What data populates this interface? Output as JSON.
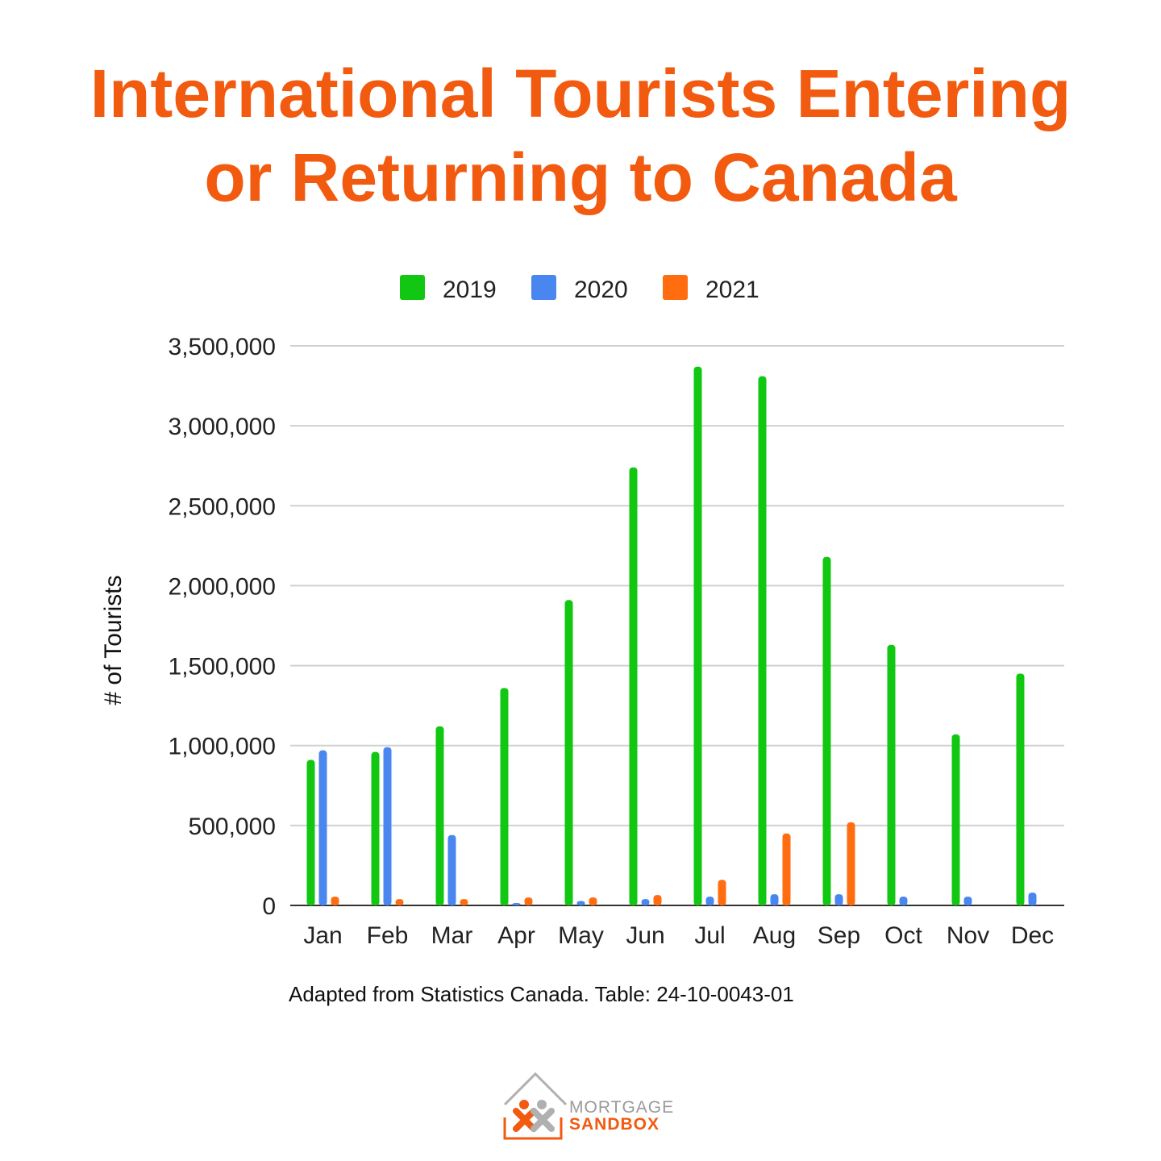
{
  "title": {
    "line1": "International Tourists Entering",
    "line2": "or Returning to Canada"
  },
  "source_note": "Adapted from Statistics Canada. Table: 24-10-0043-01",
  "logo": {
    "line1": "MORTGAGE",
    "line2": "SANDBOX"
  },
  "colors": {
    "title": "#f25a0f",
    "2019": "#11c711",
    "2020": "#4a86f0",
    "2021": "#ff6d10",
    "grid": "#d0d0d0"
  },
  "chart_data": {
    "type": "bar",
    "title": "International Tourists Entering or Returning to Canada",
    "xlabel": "",
    "ylabel": "# of Tourists",
    "ylim": [
      0,
      3500000
    ],
    "yticks": [
      0,
      500000,
      1000000,
      1500000,
      2000000,
      2500000,
      3000000,
      3500000
    ],
    "ytick_labels": [
      "0",
      "500,000",
      "1,000,000",
      "1,500,000",
      "2,000,000",
      "2,500,000",
      "3,000,000",
      "3,500,000"
    ],
    "grid": true,
    "legend_position": "top",
    "categories": [
      "Jan",
      "Feb",
      "Mar",
      "Apr",
      "May",
      "Jun",
      "Jul",
      "Aug",
      "Sep",
      "Oct",
      "Nov",
      "Dec"
    ],
    "series": [
      {
        "name": "2019",
        "color": "#11c711",
        "values": [
          910000,
          960000,
          1120000,
          1360000,
          1910000,
          2740000,
          3370000,
          3310000,
          2180000,
          1630000,
          1070000,
          1450000
        ]
      },
      {
        "name": "2020",
        "color": "#4a86f0",
        "values": [
          970000,
          990000,
          440000,
          15000,
          28000,
          40000,
          55000,
          70000,
          70000,
          55000,
          55000,
          80000
        ]
      },
      {
        "name": "2021",
        "color": "#ff6d10",
        "values": [
          55000,
          40000,
          40000,
          50000,
          50000,
          65000,
          160000,
          450000,
          520000,
          null,
          null,
          null
        ]
      }
    ]
  }
}
